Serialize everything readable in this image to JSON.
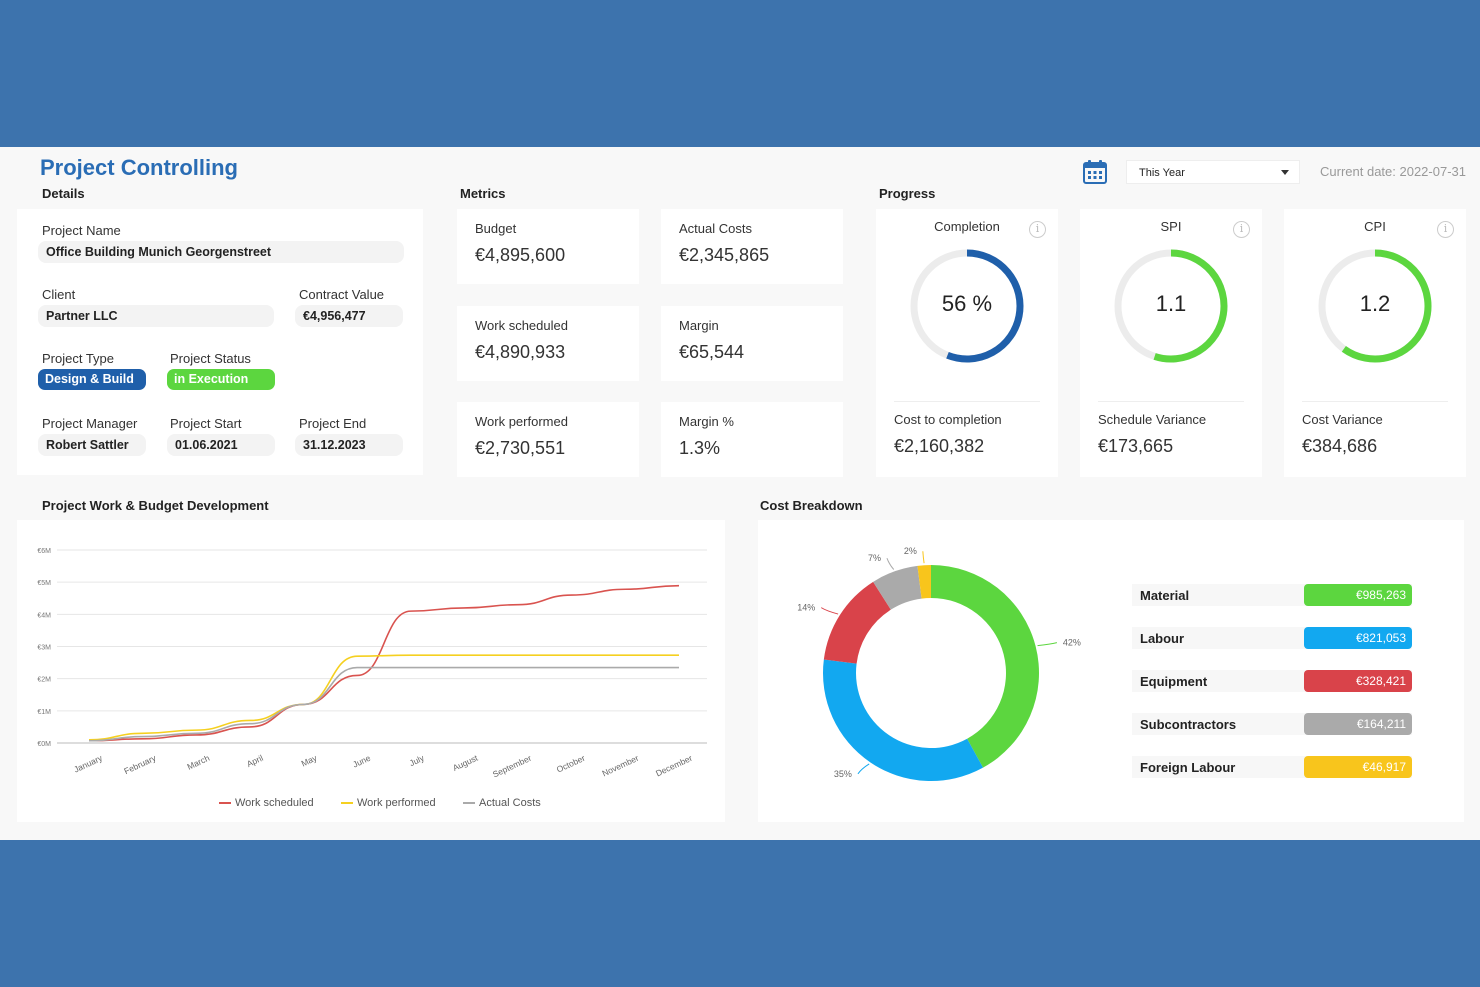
{
  "app": {
    "title": "Project Controlling",
    "filter_value": "This Year",
    "current_date": "Current date: 2022-07-31"
  },
  "sections": {
    "details": "Details",
    "metrics": "Metrics",
    "progress": "Progress",
    "work_budget": "Project Work & Budget Development",
    "cost_breakdown": "Cost Breakdown"
  },
  "details": {
    "project_name_label": "Project Name",
    "project_name": "Office Building Munich Georgenstreet",
    "client_label": "Client",
    "client": "Partner LLC",
    "contract_value_label": "Contract Value",
    "contract_value": "€4,956,477",
    "project_type_label": "Project Type",
    "project_type": "Design & Build",
    "project_status_label": "Project Status",
    "project_status": "in Execution",
    "project_manager_label": "Project Manager",
    "project_manager": "Robert Sattler",
    "project_start_label": "Project Start",
    "project_start": "01.06.2021",
    "project_end_label": "Project End",
    "project_end": "31.12.2023"
  },
  "metrics": [
    {
      "label": "Budget",
      "value": "€4,895,600"
    },
    {
      "label": "Actual Costs",
      "value": "€2,345,865"
    },
    {
      "label": "Work scheduled",
      "value": "€4,890,933"
    },
    {
      "label": "Margin",
      "value": "€65,544"
    },
    {
      "label": "Work performed",
      "value": "€2,730,551"
    },
    {
      "label": "Margin %",
      "value": "1.3%"
    }
  ],
  "progress": [
    {
      "title": "Completion",
      "value": "56 %",
      "fraction": 0.56,
      "color": "#1f5faa",
      "sub_label": "Cost to completion",
      "sub_value": "€2,160,382"
    },
    {
      "title": "SPI",
      "value": "1.1",
      "fraction": 0.55,
      "color": "#5cd63f",
      "sub_label": "Schedule Variance",
      "sub_value": "€173,665"
    },
    {
      "title": "CPI",
      "value": "1.2",
      "fraction": 0.6,
      "color": "#5cd63f",
      "sub_label": "Cost Variance",
      "sub_value": "€384,686"
    }
  ],
  "chart_data": [
    {
      "type": "line",
      "title": "Project Work & Budget Development",
      "categories": [
        "January",
        "February",
        "March",
        "April",
        "May",
        "June",
        "July",
        "August",
        "September",
        "October",
        "November",
        "December"
      ],
      "y_ticks": [
        "€0M",
        "€1M",
        "€2M",
        "€3M",
        "€4M",
        "€5M",
        "€6M"
      ],
      "ylim": [
        0,
        6000000
      ],
      "grid": true,
      "legend_position": "bottom",
      "series": [
        {
          "name": "Work scheduled",
          "color": "#d9534f",
          "values": [
            70000,
            130000,
            250000,
            500000,
            1200000,
            2100000,
            4100000,
            4200000,
            4300000,
            4600000,
            4780000,
            4890933
          ]
        },
        {
          "name": "Work performed",
          "color": "#f5d020",
          "values": [
            100000,
            300000,
            400000,
            700000,
            1200000,
            2700000,
            2730551,
            2730551,
            2730551,
            2730551,
            2730551,
            2730551
          ]
        },
        {
          "name": "Actual Costs",
          "color": "#aaaaaa",
          "values": [
            70000,
            200000,
            300000,
            600000,
            1200000,
            2345865,
            2345865,
            2345865,
            2345865,
            2345865,
            2345865,
            2345865
          ]
        }
      ]
    },
    {
      "type": "pie",
      "title": "Cost Breakdown",
      "donut": true,
      "slices": [
        {
          "name": "Material",
          "value": 985263,
          "label": "€985,263",
          "percent": "42%",
          "color": "#5cd63f"
        },
        {
          "name": "Labour",
          "value": 821053,
          "label": "€821,053",
          "percent": "35%",
          "color": "#12a8f0"
        },
        {
          "name": "Equipment",
          "value": 328421,
          "label": "€328,421",
          "percent": "14%",
          "color": "#d9434a"
        },
        {
          "name": "Subcontractors",
          "value": 164211,
          "label": "€164,211",
          "percent": "7%",
          "color": "#aaaaaa"
        },
        {
          "name": "Foreign Labour",
          "value": 46917,
          "label": "€46,917",
          "percent": "2%",
          "color": "#f8c51c"
        }
      ]
    }
  ]
}
